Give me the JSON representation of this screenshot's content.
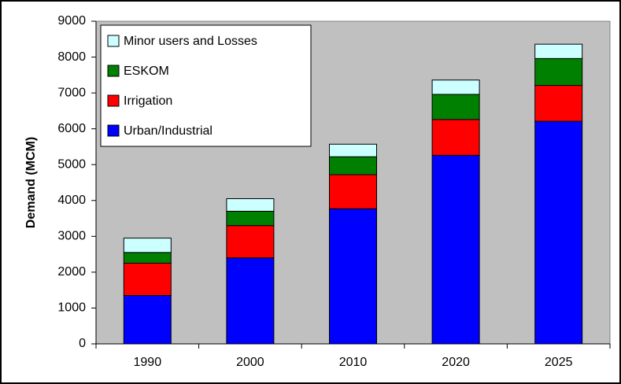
{
  "chart_data": {
    "type": "stacked_bar",
    "ylabel": "Demand (MCM)",
    "categories": [
      "1990",
      "2000",
      "2010",
      "2020",
      "2025"
    ],
    "series": [
      {
        "name": "Urban/Industrial",
        "color": "#0000ff",
        "values": [
          1350,
          2400,
          3770,
          5260,
          6210
        ]
      },
      {
        "name": "Irrigation",
        "color": "#ff0000",
        "values": [
          900,
          900,
          950,
          1000,
          1000
        ]
      },
      {
        "name": "ESKOM",
        "color": "#008000",
        "values": [
          300,
          400,
          500,
          700,
          750
        ]
      },
      {
        "name": "Minor users and Losses",
        "color": "#ccffff",
        "values": [
          400,
          350,
          350,
          400,
          400
        ]
      }
    ],
    "ylim": [
      0,
      9000
    ],
    "yticks": [
      0,
      1000,
      2000,
      3000,
      4000,
      5000,
      6000,
      7000,
      8000,
      9000
    ],
    "grid": false,
    "plot_background": "#c0c0c0",
    "legend": "upper left"
  }
}
